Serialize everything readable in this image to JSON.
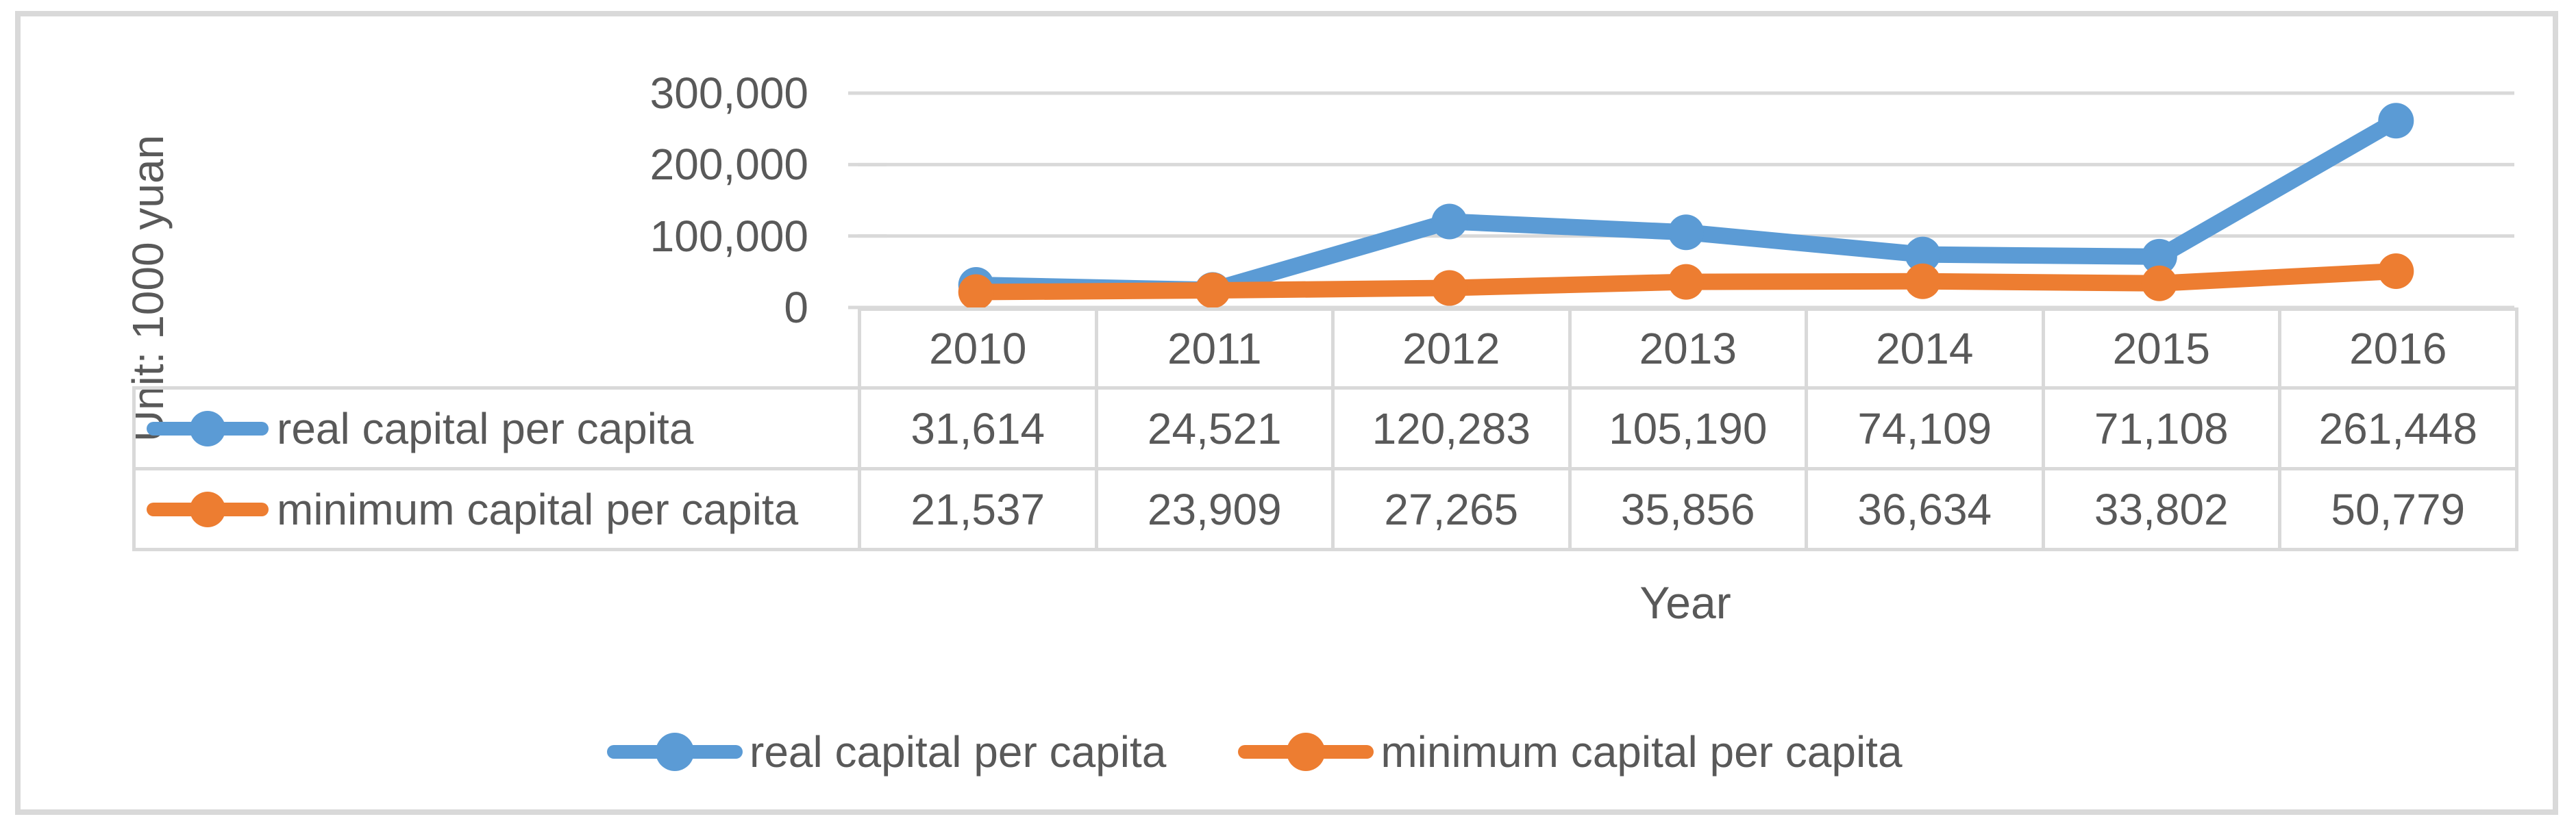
{
  "chart": {
    "y_axis_title": "Unit: 1000 yuan",
    "x_axis_title": "Year",
    "y_tick_labels": [
      "300,000",
      "200,000",
      "100,000",
      "0"
    ]
  },
  "chart_data": {
    "type": "line",
    "title": "",
    "categories": [
      "2010",
      "2011",
      "2012",
      "2013",
      "2014",
      "2015",
      "2016"
    ],
    "series": [
      {
        "name": "real capital per capita",
        "color": "#5B9BD5",
        "values": [
          31614,
          24521,
          120283,
          105190,
          74109,
          71108,
          261448
        ]
      },
      {
        "name": "minimum capital per capita",
        "color": "#ED7D31",
        "values": [
          21537,
          23909,
          27265,
          35856,
          36634,
          33802,
          50779
        ]
      }
    ],
    "xlabel": "Year",
    "ylabel": "Unit: 1000 yuan",
    "ylim": [
      0,
      300000
    ],
    "y_tick_step": 100000,
    "grid": true,
    "marker": "circle",
    "legend_position": "bottom",
    "data_table_shown": true
  },
  "table": {
    "header": [
      "2010",
      "2011",
      "2012",
      "2013",
      "2014",
      "2015",
      "2016"
    ],
    "rows": [
      {
        "label": "real capital per capita",
        "color": "#5B9BD5",
        "values": [
          "31,614",
          "24,521",
          "120,283",
          "105,190",
          "74,109",
          "71,108",
          "261,448"
        ]
      },
      {
        "label": "minimum capital per capita",
        "color": "#ED7D31",
        "values": [
          "21,537",
          "23,909",
          "27,265",
          "35,856",
          "36,634",
          "33,802",
          "50,779"
        ]
      }
    ]
  },
  "legend": {
    "items": [
      {
        "label": "real capital per capita",
        "color": "#5B9BD5"
      },
      {
        "label": "minimum capital per capita",
        "color": "#ED7D31"
      }
    ]
  },
  "colors": {
    "series_blue": "#5B9BD5",
    "series_orange": "#ED7D31",
    "grid": "#D9D9D9",
    "text": "#595959"
  }
}
